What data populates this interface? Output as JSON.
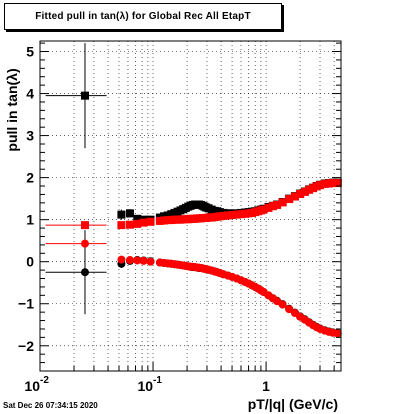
{
  "title": "Fitted pull in tan(λ) for Global Rec All EtapT",
  "xlabel": "pT/|q| (GeV/c)",
  "ylabel": "pull in tan(λ)",
  "date_stamp": "Sat Dec 26 07:34:15 2020",
  "colors": {
    "black_series": "#000000",
    "red_series": "#ff0000"
  },
  "chart_data": {
    "type": "scatter",
    "title": "Fitted pull in tan(λ) for Global Rec All EtapT",
    "xlabel": "pT/|q| (GeV/c)",
    "ylabel": "pull in tan(λ)",
    "xscale": "log",
    "xlim": [
      0.01,
      4.6
    ],
    "ylim": [
      -2.6,
      5.25
    ],
    "grid": true,
    "x_ticks": [
      {
        "value": 0.01,
        "label": "10",
        "exp": "-2"
      },
      {
        "value": 0.1,
        "label": "10",
        "exp": "-1"
      },
      {
        "value": 1,
        "label": "1",
        "exp": ""
      }
    ],
    "y_ticks": [
      -2,
      -1,
      0,
      1,
      2,
      3,
      4,
      5
    ],
    "series": [
      {
        "color": "#000000",
        "marker": "square",
        "x": [
          0.025,
          0.0525,
          0.0625,
          0.0725,
          0.0825,
          0.095,
          0.115,
          0.125,
          0.135,
          0.145,
          0.155,
          0.165,
          0.175,
          0.185,
          0.195,
          0.205,
          0.215,
          0.225,
          0.235,
          0.245,
          0.255,
          0.265,
          0.275,
          0.285,
          0.295,
          0.31,
          0.33,
          0.35,
          0.37,
          0.39,
          0.42,
          0.46,
          0.5,
          0.55,
          0.6,
          0.65,
          0.7,
          0.75,
          0.8,
          0.85,
          0.9,
          0.95,
          1.05,
          1.15,
          1.25,
          1.4,
          1.6,
          1.8,
          2.0,
          2.2,
          2.4,
          2.6,
          2.8,
          3.0,
          3.3,
          3.6,
          3.9,
          4.3
        ],
        "y": [
          3.95,
          1.12,
          1.15,
          1.02,
          1.0,
          1.0,
          1.05,
          1.08,
          1.1,
          1.13,
          1.16,
          1.19,
          1.22,
          1.25,
          1.28,
          1.31,
          1.33,
          1.35,
          1.36,
          1.36,
          1.36,
          1.35,
          1.33,
          1.31,
          1.29,
          1.27,
          1.24,
          1.21,
          1.2,
          1.18,
          1.16,
          1.15,
          1.15,
          1.15,
          1.16,
          1.17,
          1.18,
          1.19,
          1.2,
          1.22,
          1.24,
          1.26,
          1.3,
          1.33,
          1.36,
          1.42,
          1.5,
          1.56,
          1.62,
          1.67,
          1.72,
          1.76,
          1.8,
          1.83,
          1.86,
          1.87,
          1.88,
          1.88
        ],
        "xerr": [
          0.0138,
          0.0025,
          0.0025,
          0.0025,
          0.0025,
          0.005,
          0.005,
          0.005,
          0.005,
          0.005,
          0.005,
          0.005,
          0.005,
          0.005,
          0.005,
          0.005,
          0.005,
          0.005,
          0.005,
          0.005,
          0.005,
          0.005,
          0.005,
          0.005,
          0.005,
          0.01,
          0.01,
          0.01,
          0.01,
          0.01,
          0.02,
          0.02,
          0.025,
          0.025,
          0.025,
          0.025,
          0.025,
          0.025,
          0.025,
          0.025,
          0.025,
          0.025,
          0.05,
          0.05,
          0.05,
          0.1,
          0.1,
          0.1,
          0.1,
          0.1,
          0.1,
          0.1,
          0.1,
          0.1,
          0.15,
          0.15,
          0.15,
          0.2
        ],
        "yerr": [
          1.25,
          0.12,
          0.1,
          0.08,
          0.06,
          0.05,
          0.04,
          0.04,
          0.04,
          0.04,
          0.04,
          0.04,
          0.04,
          0.04,
          0.04,
          0.04,
          0.04,
          0.04,
          0.04,
          0.04,
          0.04,
          0.04,
          0.04,
          0.04,
          0.04,
          0.03,
          0.03,
          0.03,
          0.03,
          0.03,
          0.03,
          0.03,
          0.03,
          0.03,
          0.03,
          0.03,
          0.03,
          0.03,
          0.03,
          0.03,
          0.03,
          0.03,
          0.03,
          0.03,
          0.03,
          0.03,
          0.03,
          0.03,
          0.03,
          0.03,
          0.03,
          0.03,
          0.03,
          0.03,
          0.03,
          0.03,
          0.03,
          0.03
        ]
      },
      {
        "color": "#ff0000",
        "marker": "square",
        "x": [
          0.025,
          0.0525,
          0.0625,
          0.0725,
          0.0825,
          0.095,
          0.115,
          0.125,
          0.135,
          0.145,
          0.155,
          0.165,
          0.175,
          0.185,
          0.195,
          0.205,
          0.215,
          0.225,
          0.235,
          0.245,
          0.255,
          0.265,
          0.275,
          0.285,
          0.295,
          0.31,
          0.33,
          0.35,
          0.37,
          0.39,
          0.42,
          0.46,
          0.5,
          0.55,
          0.6,
          0.65,
          0.7,
          0.75,
          0.8,
          0.85,
          0.9,
          0.95,
          1.05,
          1.15,
          1.25,
          1.4,
          1.6,
          1.8,
          2.0,
          2.2,
          2.4,
          2.6,
          2.8,
          3.0,
          3.3,
          3.6,
          3.9,
          4.3
        ],
        "y": [
          0.87,
          0.87,
          0.88,
          0.9,
          0.93,
          0.95,
          0.97,
          0.98,
          0.99,
          0.99,
          1.0,
          1.0,
          1.0,
          1.01,
          1.01,
          1.01,
          1.02,
          1.02,
          1.02,
          1.03,
          1.03,
          1.03,
          1.04,
          1.04,
          1.04,
          1.05,
          1.05,
          1.06,
          1.07,
          1.08,
          1.09,
          1.1,
          1.11,
          1.12,
          1.13,
          1.14,
          1.15,
          1.16,
          1.18,
          1.2,
          1.22,
          1.24,
          1.28,
          1.32,
          1.35,
          1.41,
          1.49,
          1.55,
          1.61,
          1.66,
          1.71,
          1.75,
          1.79,
          1.82,
          1.85,
          1.86,
          1.87,
          1.87
        ],
        "xerr": [
          0.0138,
          0.0025,
          0.0025,
          0.0025,
          0.0025,
          0.005,
          0.005,
          0.005,
          0.005,
          0.005,
          0.005,
          0.005,
          0.005,
          0.005,
          0.005,
          0.005,
          0.005,
          0.005,
          0.005,
          0.005,
          0.005,
          0.005,
          0.005,
          0.005,
          0.005,
          0.01,
          0.01,
          0.01,
          0.01,
          0.01,
          0.02,
          0.02,
          0.025,
          0.025,
          0.025,
          0.025,
          0.025,
          0.025,
          0.025,
          0.025,
          0.025,
          0.025,
          0.05,
          0.05,
          0.05,
          0.1,
          0.1,
          0.1,
          0.1,
          0.1,
          0.1,
          0.1,
          0.1,
          0.1,
          0.15,
          0.15,
          0.15,
          0.2
        ],
        "yerr": [
          0.05,
          0.04,
          0.04,
          0.03,
          0.03,
          0.03,
          0.03,
          0.03,
          0.03,
          0.03,
          0.03,
          0.03,
          0.03,
          0.03,
          0.03,
          0.03,
          0.03,
          0.03,
          0.03,
          0.03,
          0.03,
          0.03,
          0.03,
          0.03,
          0.03,
          0.03,
          0.03,
          0.03,
          0.03,
          0.03,
          0.03,
          0.03,
          0.03,
          0.03,
          0.03,
          0.03,
          0.03,
          0.03,
          0.03,
          0.03,
          0.03,
          0.03,
          0.03,
          0.03,
          0.03,
          0.03,
          0.03,
          0.03,
          0.03,
          0.03,
          0.03,
          0.03,
          0.03,
          0.03,
          0.03,
          0.03,
          0.03,
          0.03
        ]
      },
      {
        "color": "#000000",
        "marker": "circle",
        "x": [
          0.025,
          0.0525,
          0.0625,
          0.0725,
          0.0825,
          0.095,
          0.115,
          0.125,
          0.135,
          0.145,
          0.155,
          0.165,
          0.175,
          0.185,
          0.195,
          0.205,
          0.215,
          0.225,
          0.235,
          0.245,
          0.255,
          0.265,
          0.275,
          0.285,
          0.295,
          0.31,
          0.33,
          0.35,
          0.37,
          0.39,
          0.42,
          0.46,
          0.5,
          0.55,
          0.6,
          0.65,
          0.7,
          0.75,
          0.8,
          0.85,
          0.9,
          0.95,
          1.05,
          1.15,
          1.25,
          1.4,
          1.6,
          1.8,
          2.0,
          2.2,
          2.4,
          2.6,
          2.8,
          3.0,
          3.3,
          3.6,
          3.9,
          4.3
        ],
        "y": [
          -0.25,
          -0.05,
          0.02,
          0.04,
          0.03,
          0.01,
          -0.02,
          -0.03,
          -0.04,
          -0.05,
          -0.06,
          -0.07,
          -0.08,
          -0.09,
          -0.1,
          -0.11,
          -0.12,
          -0.13,
          -0.13,
          -0.14,
          -0.15,
          -0.15,
          -0.16,
          -0.17,
          -0.18,
          -0.19,
          -0.21,
          -0.23,
          -0.25,
          -0.27,
          -0.3,
          -0.33,
          -0.36,
          -0.4,
          -0.44,
          -0.48,
          -0.52,
          -0.56,
          -0.6,
          -0.64,
          -0.68,
          -0.72,
          -0.8,
          -0.87,
          -0.93,
          -1.01,
          -1.12,
          -1.21,
          -1.3,
          -1.37,
          -1.44,
          -1.5,
          -1.55,
          -1.59,
          -1.63,
          -1.66,
          -1.68,
          -1.7
        ],
        "xerr": [
          0.0138,
          0.0025,
          0.0025,
          0.0025,
          0.0025,
          0.005,
          0.005,
          0.005,
          0.005,
          0.005,
          0.005,
          0.005,
          0.005,
          0.005,
          0.005,
          0.005,
          0.005,
          0.005,
          0.005,
          0.005,
          0.005,
          0.005,
          0.005,
          0.005,
          0.005,
          0.01,
          0.01,
          0.01,
          0.01,
          0.01,
          0.02,
          0.02,
          0.025,
          0.025,
          0.025,
          0.025,
          0.025,
          0.025,
          0.025,
          0.025,
          0.025,
          0.025,
          0.05,
          0.05,
          0.05,
          0.1,
          0.1,
          0.1,
          0.1,
          0.1,
          0.1,
          0.1,
          0.1,
          0.1,
          0.15,
          0.15,
          0.15,
          0.2
        ],
        "yerr": [
          1.0,
          0.1,
          0.08,
          0.06,
          0.05,
          0.04,
          0.03,
          0.03,
          0.03,
          0.03,
          0.03,
          0.03,
          0.03,
          0.03,
          0.03,
          0.03,
          0.03,
          0.03,
          0.03,
          0.03,
          0.03,
          0.03,
          0.03,
          0.03,
          0.03,
          0.03,
          0.03,
          0.03,
          0.03,
          0.03,
          0.03,
          0.03,
          0.03,
          0.03,
          0.03,
          0.03,
          0.03,
          0.03,
          0.03,
          0.03,
          0.03,
          0.03,
          0.03,
          0.03,
          0.03,
          0.03,
          0.03,
          0.03,
          0.03,
          0.03,
          0.03,
          0.03,
          0.03,
          0.03,
          0.03,
          0.03,
          0.03,
          0.03
        ]
      },
      {
        "color": "#ff0000",
        "marker": "circle",
        "x": [
          0.025,
          0.0525,
          0.0625,
          0.0725,
          0.0825,
          0.095,
          0.115,
          0.125,
          0.135,
          0.145,
          0.155,
          0.165,
          0.175,
          0.185,
          0.195,
          0.205,
          0.215,
          0.225,
          0.235,
          0.245,
          0.255,
          0.265,
          0.275,
          0.285,
          0.295,
          0.31,
          0.33,
          0.35,
          0.37,
          0.39,
          0.42,
          0.46,
          0.5,
          0.55,
          0.6,
          0.65,
          0.7,
          0.75,
          0.8,
          0.85,
          0.9,
          0.95,
          1.05,
          1.15,
          1.25,
          1.4,
          1.6,
          1.8,
          2.0,
          2.2,
          2.4,
          2.6,
          2.8,
          3.0,
          3.3,
          3.6,
          3.9,
          4.3
        ],
        "y": [
          0.43,
          0.05,
          0.04,
          0.03,
          0.02,
          0.0,
          -0.02,
          -0.03,
          -0.04,
          -0.05,
          -0.06,
          -0.07,
          -0.08,
          -0.09,
          -0.1,
          -0.11,
          -0.12,
          -0.12,
          -0.13,
          -0.14,
          -0.14,
          -0.15,
          -0.16,
          -0.17,
          -0.18,
          -0.19,
          -0.21,
          -0.23,
          -0.25,
          -0.27,
          -0.3,
          -0.33,
          -0.36,
          -0.4,
          -0.44,
          -0.48,
          -0.52,
          -0.56,
          -0.6,
          -0.64,
          -0.68,
          -0.72,
          -0.8,
          -0.87,
          -0.94,
          -1.02,
          -1.13,
          -1.22,
          -1.31,
          -1.38,
          -1.45,
          -1.51,
          -1.56,
          -1.6,
          -1.64,
          -1.67,
          -1.69,
          -1.71
        ],
        "xerr": [
          0.0138,
          0.0025,
          0.0025,
          0.0025,
          0.0025,
          0.005,
          0.005,
          0.005,
          0.005,
          0.005,
          0.005,
          0.005,
          0.005,
          0.005,
          0.005,
          0.005,
          0.005,
          0.005,
          0.005,
          0.005,
          0.005,
          0.005,
          0.005,
          0.005,
          0.005,
          0.01,
          0.01,
          0.01,
          0.01,
          0.01,
          0.02,
          0.02,
          0.025,
          0.025,
          0.025,
          0.025,
          0.025,
          0.025,
          0.025,
          0.025,
          0.025,
          0.025,
          0.05,
          0.05,
          0.05,
          0.1,
          0.1,
          0.1,
          0.1,
          0.1,
          0.1,
          0.1,
          0.1,
          0.1,
          0.15,
          0.15,
          0.15,
          0.2
        ],
        "yerr": [
          0.05,
          0.04,
          0.04,
          0.03,
          0.03,
          0.03,
          0.03,
          0.03,
          0.03,
          0.03,
          0.03,
          0.03,
          0.03,
          0.03,
          0.03,
          0.03,
          0.03,
          0.03,
          0.03,
          0.03,
          0.03,
          0.03,
          0.03,
          0.03,
          0.03,
          0.03,
          0.03,
          0.03,
          0.03,
          0.03,
          0.03,
          0.03,
          0.03,
          0.03,
          0.03,
          0.03,
          0.03,
          0.03,
          0.03,
          0.03,
          0.03,
          0.03,
          0.03,
          0.03,
          0.03,
          0.03,
          0.03,
          0.03,
          0.03,
          0.03,
          0.03,
          0.03,
          0.03,
          0.03,
          0.03,
          0.03,
          0.03,
          0.03
        ]
      }
    ]
  }
}
